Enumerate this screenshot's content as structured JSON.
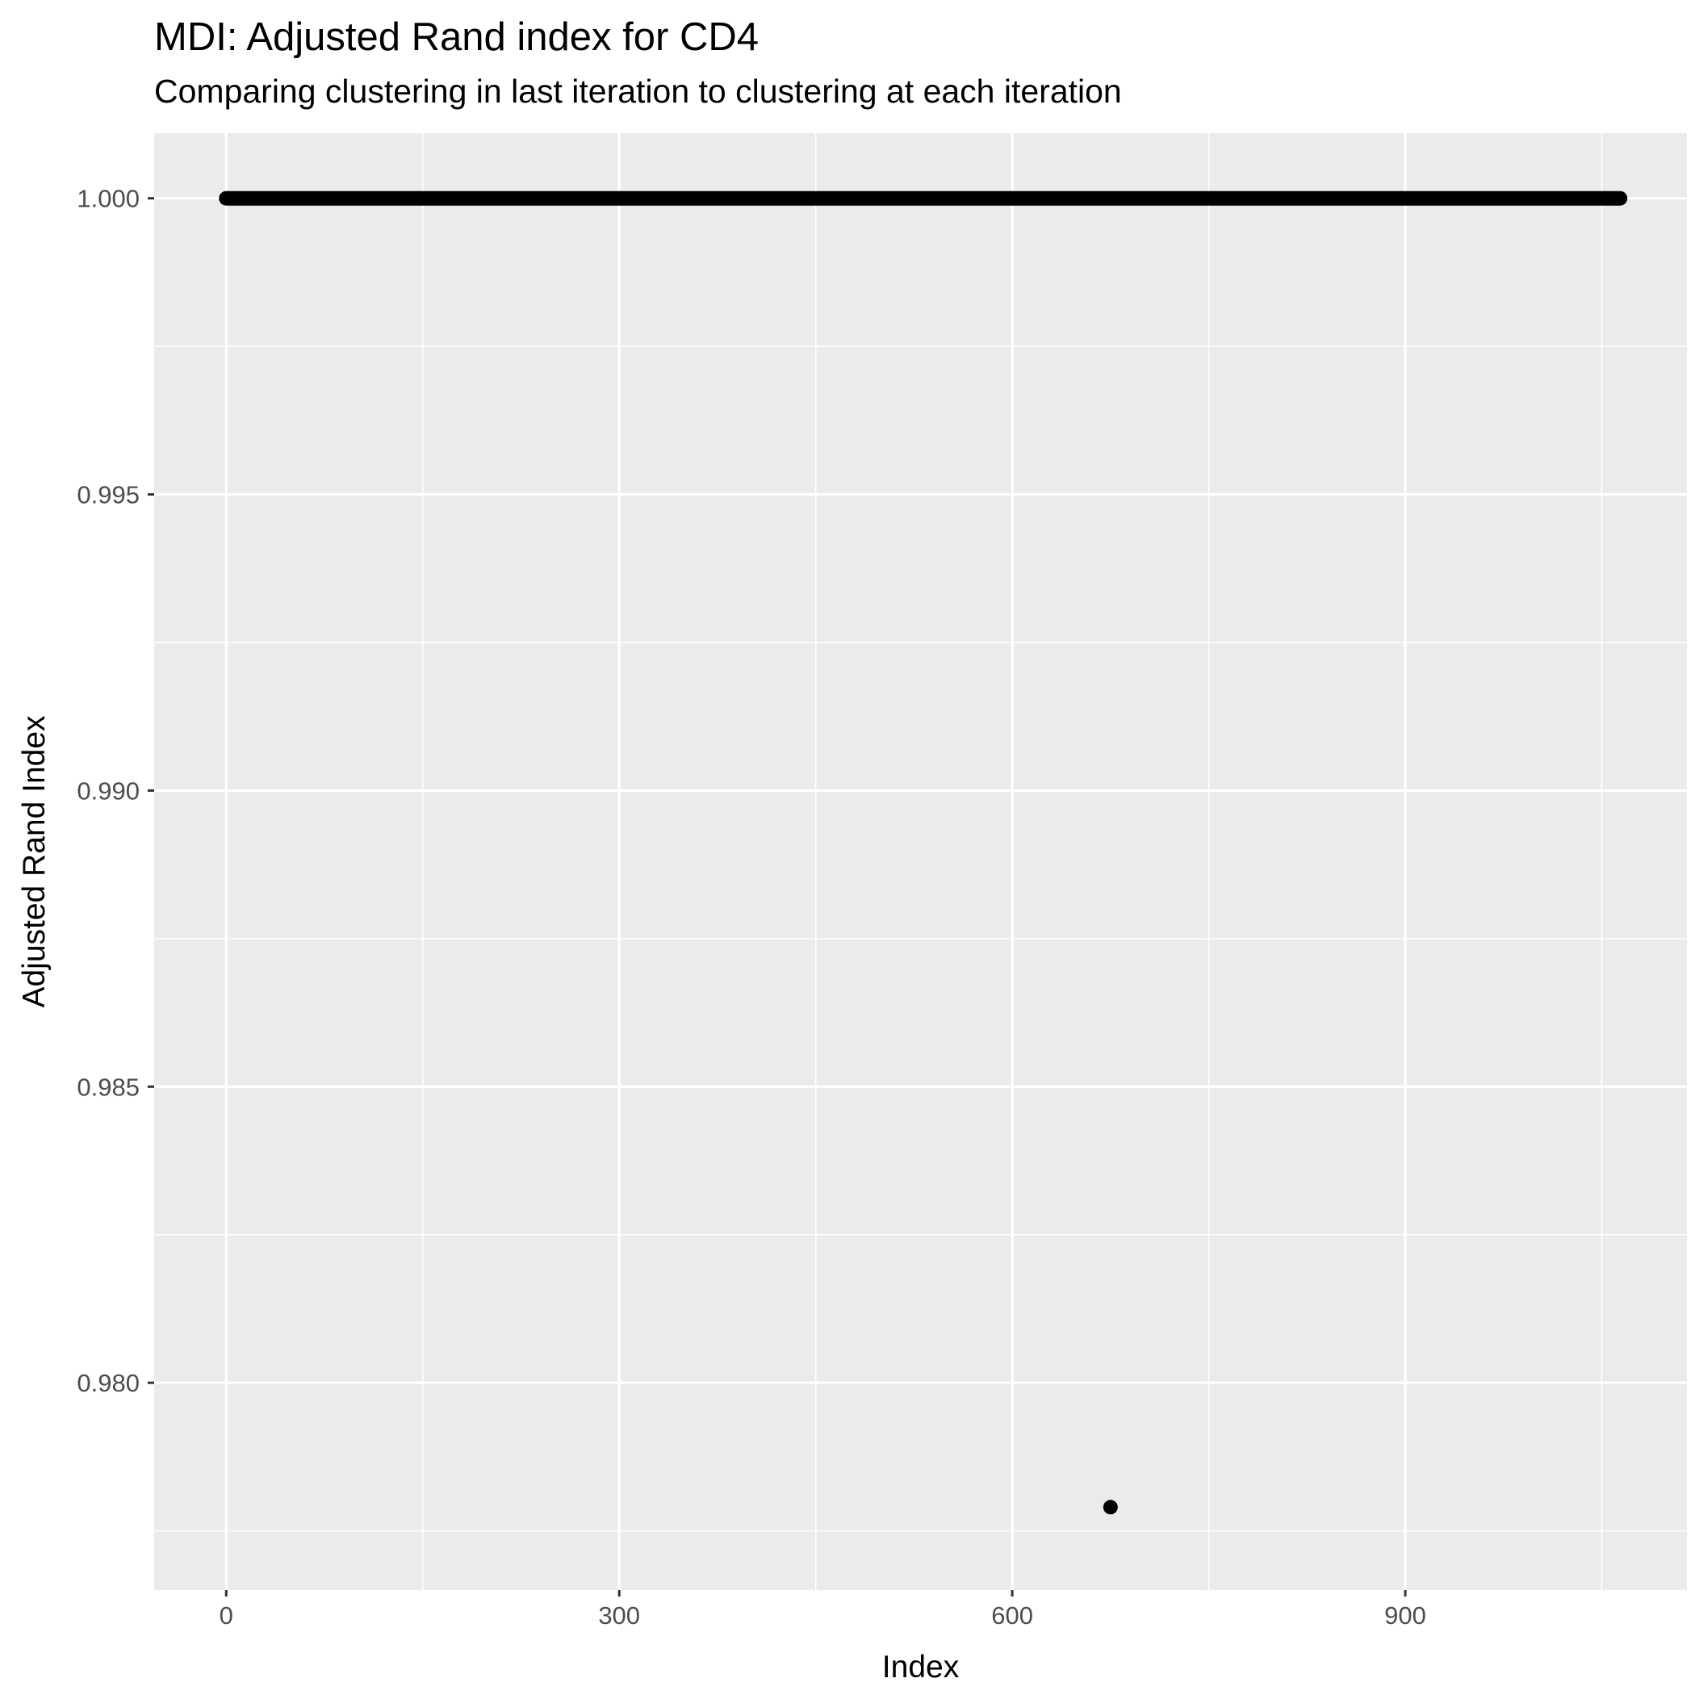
{
  "chart_data": {
    "type": "scatter",
    "title": "MDI: Adjusted Rand index for CD4",
    "subtitle": "Comparing clustering in last iteration to clustering at each iteration",
    "xlabel": "Index",
    "ylabel": "Adjusted Rand Index",
    "xlim": [
      -55,
      1115
    ],
    "ylim": [
      0.9765,
      1.0011
    ],
    "x_ticks": [
      0,
      300,
      600,
      900
    ],
    "x_tick_labels": [
      "0",
      "300",
      "600",
      "900"
    ],
    "y_ticks": [
      0.98,
      0.985,
      0.99,
      0.995,
      1.0
    ],
    "y_tick_labels": [
      "0.980",
      "0.985",
      "0.990",
      "0.995",
      "1.000"
    ],
    "grid": true,
    "series": [
      {
        "runs": [
          {
            "x_start": 0,
            "x_end": 1064,
            "y": 1.0
          }
        ],
        "points": [
          {
            "x": 675,
            "y": 0.9779
          }
        ]
      }
    ],
    "colors": {
      "panel": "#ebebeb",
      "grid": "#ffffff",
      "points": "#000000",
      "tick_text": "#4d4d4d"
    }
  }
}
